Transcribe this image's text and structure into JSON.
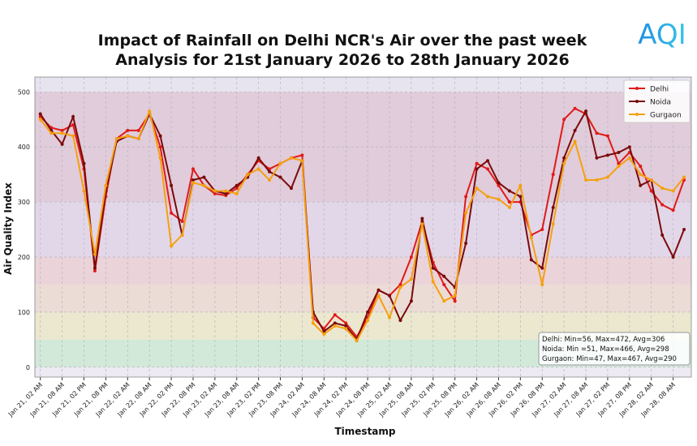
{
  "chart_data": {
    "type": "line",
    "title": [
      "Impact of Rainfall on Delhi NCR's Air over the past week",
      "Analysis for 21st January 2026 to 28th January 2026"
    ],
    "logo": "AQI",
    "x_label": "Timestamp",
    "y_label": "Air Quality Index",
    "x": [
      0,
      3,
      6,
      9,
      12,
      15,
      18,
      21,
      24,
      27,
      30,
      33,
      36,
      39,
      42,
      45,
      48,
      51,
      54,
      57,
      60,
      63,
      66,
      69,
      72,
      75,
      78,
      81,
      84,
      87,
      90,
      93,
      96,
      99,
      102,
      105,
      108,
      111,
      114,
      117,
      120,
      123,
      126,
      129,
      132,
      135,
      138,
      141,
      144,
      147,
      150,
      153,
      156,
      159,
      162,
      165,
      168,
      171,
      174,
      177
    ],
    "xlim": [
      -1.5,
      179
    ],
    "xticks": [
      {
        "value": 0,
        "label": "Jan 21, 02 AM"
      },
      {
        "value": 6,
        "label": "Jan 21, 08 AM"
      },
      {
        "value": 12,
        "label": "Jan 21, 02 PM"
      },
      {
        "value": 18,
        "label": "Jan 21, 08 PM"
      },
      {
        "value": 24,
        "label": "Jan 22, 02 AM"
      },
      {
        "value": 30,
        "label": "Jan 22, 08 AM"
      },
      {
        "value": 36,
        "label": "Jan 22, 02 PM"
      },
      {
        "value": 42,
        "label": "Jan 22, 08 PM"
      },
      {
        "value": 48,
        "label": "Jan 23, 02 AM"
      },
      {
        "value": 54,
        "label": "Jan 23, 08 AM"
      },
      {
        "value": 60,
        "label": "Jan 23, 02 PM"
      },
      {
        "value": 66,
        "label": "Jan 23, 08 PM"
      },
      {
        "value": 72,
        "label": "Jan 24, 02 AM"
      },
      {
        "value": 78,
        "label": "Jan 24, 08 AM"
      },
      {
        "value": 84,
        "label": "Jan 24, 02 PM"
      },
      {
        "value": 90,
        "label": "Jan 24, 08 PM"
      },
      {
        "value": 96,
        "label": "Jan 25, 02 AM"
      },
      {
        "value": 102,
        "label": "Jan 25, 08 AM"
      },
      {
        "value": 108,
        "label": "Jan 25, 02 PM"
      },
      {
        "value": 114,
        "label": "Jan 25, 08 PM"
      },
      {
        "value": 120,
        "label": "Jan 26, 02 AM"
      },
      {
        "value": 126,
        "label": "Jan 26, 08 AM"
      },
      {
        "value": 132,
        "label": "Jan 26, 02 PM"
      },
      {
        "value": 138,
        "label": "Jan 26, 08 PM"
      },
      {
        "value": 144,
        "label": "Jan 27, 02 AM"
      },
      {
        "value": 150,
        "label": "Jan 27, 08 AM"
      },
      {
        "value": 156,
        "label": "Jan 27, 02 PM"
      },
      {
        "value": 162,
        "label": "Jan 27, 08 PM"
      },
      {
        "value": 168,
        "label": "Jan 28, 02 AM"
      },
      {
        "value": 174,
        "label": "Jan 28, 08 AM"
      }
    ],
    "ylim": [
      -18,
      527
    ],
    "yticks": [
      0,
      100,
      200,
      300,
      400,
      500
    ],
    "grid": true,
    "aqi_bands": [
      {
        "from": 0,
        "to": 50,
        "color": "#d2e9d9"
      },
      {
        "from": 50,
        "to": 100,
        "color": "#ebe8cf"
      },
      {
        "from": 100,
        "to": 150,
        "color": "#ecdcd6"
      },
      {
        "from": 150,
        "to": 200,
        "color": "#ead3d9"
      },
      {
        "from": 200,
        "to": 300,
        "color": "#e2d7e9"
      },
      {
        "from": 300,
        "to": 500,
        "color": "#e0ccda"
      },
      {
        "from": 500,
        "to": 527,
        "color": "#e7e4ef"
      }
    ],
    "legend": "upper right",
    "series": [
      {
        "name": "Delhi",
        "color": "#e01a1a",
        "values": [
          455,
          435,
          430,
          440,
          360,
          175,
          310,
          415,
          430,
          430,
          460,
          400,
          280,
          265,
          360,
          330,
          315,
          312,
          325,
          350,
          375,
          360,
          370,
          380,
          385,
          90,
          70,
          95,
          80,
          55,
          90,
          140,
          130,
          150,
          200,
          265,
          190,
          150,
          120,
          310,
          370,
          360,
          330,
          300,
          300,
          240,
          250,
          350,
          450,
          470,
          460,
          425,
          420,
          370,
          390,
          365,
          320,
          295,
          285,
          340
        ]
      },
      {
        "name": "Noida",
        "color": "#7b0a0a",
        "values": [
          460,
          430,
          405,
          455,
          370,
          180,
          320,
          410,
          420,
          415,
          460,
          420,
          330,
          240,
          340,
          345,
          320,
          315,
          330,
          345,
          380,
          355,
          345,
          325,
          375,
          100,
          65,
          80,
          75,
          50,
          100,
          140,
          130,
          85,
          120,
          270,
          180,
          165,
          145,
          225,
          360,
          375,
          335,
          320,
          310,
          195,
          180,
          290,
          380,
          430,
          465,
          380,
          385,
          390,
          400,
          330,
          340,
          240,
          200,
          250
        ]
      },
      {
        "name": "Gurgaon",
        "color": "#f5a00f",
        "values": [
          450,
          425,
          425,
          420,
          320,
          205,
          330,
          415,
          420,
          415,
          465,
          380,
          220,
          240,
          335,
          330,
          320,
          320,
          315,
          350,
          360,
          340,
          370,
          380,
          375,
          80,
          60,
          75,
          70,
          48,
          85,
          130,
          90,
          145,
          160,
          260,
          155,
          120,
          130,
          280,
          325,
          310,
          305,
          290,
          330,
          235,
          150,
          260,
          370,
          410,
          340,
          340,
          345,
          365,
          380,
          350,
          340,
          325,
          320,
          345
        ]
      }
    ],
    "annotations": [
      "Delhi: Min=56, Max=472, Avg=306",
      "Noida: Min =51, Max=466, Avg=298",
      "Gurgaon: Min=47, Max=467, Avg=290"
    ]
  }
}
